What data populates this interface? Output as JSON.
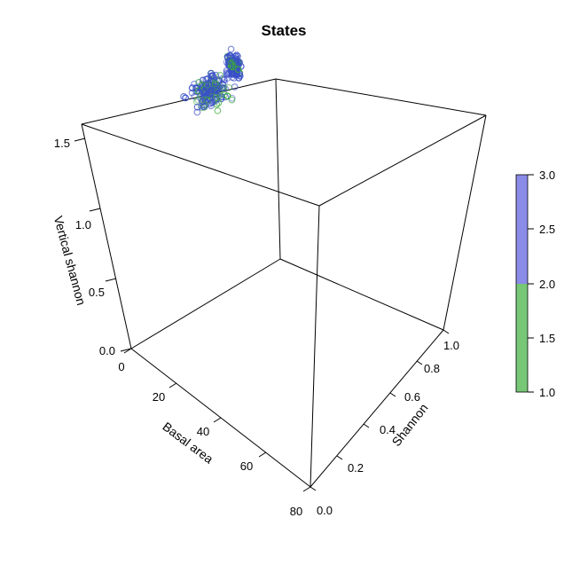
{
  "chart_data": {
    "type": "scatter",
    "title": "States",
    "axes": {
      "x": {
        "label": "Basal area",
        "range": [
          0,
          80
        ],
        "ticks": [
          "0",
          "20",
          "40",
          "60",
          "80"
        ]
      },
      "y": {
        "label": "Shannon",
        "range": [
          0.0,
          1.0
        ],
        "ticks": [
          "0.0",
          "0.2",
          "0.4",
          "0.6",
          "0.8",
          "1.0"
        ]
      },
      "z": {
        "label": "Vertical shannon",
        "range": [
          0.0,
          1.6
        ],
        "ticks": [
          "0.0",
          "0.5",
          "1.0",
          "1.5"
        ]
      }
    },
    "colorbar": {
      "range": [
        1.0,
        3.0
      ],
      "ticks": [
        "1.0",
        "1.5",
        "2.0",
        "2.5",
        "3.0"
      ],
      "colors": {
        "low": "#77c777",
        "high": "#8b8be8"
      }
    },
    "point_colors": {
      "state1": "#3aa83a",
      "state2": "#3a4fc9"
    },
    "description_note": "",
    "clusters": [
      {
        "x_center": 8,
        "x_spread": 6,
        "y_center": 0.72,
        "y_spread": 0.16,
        "z_center": 1.48,
        "z_spread": 0.12,
        "count": 160
      },
      {
        "x_center": 4,
        "x_spread": 3,
        "y_center": 0.93,
        "y_spread": 0.05,
        "z_center": 1.47,
        "z_spread": 0.12,
        "count": 120
      }
    ]
  }
}
